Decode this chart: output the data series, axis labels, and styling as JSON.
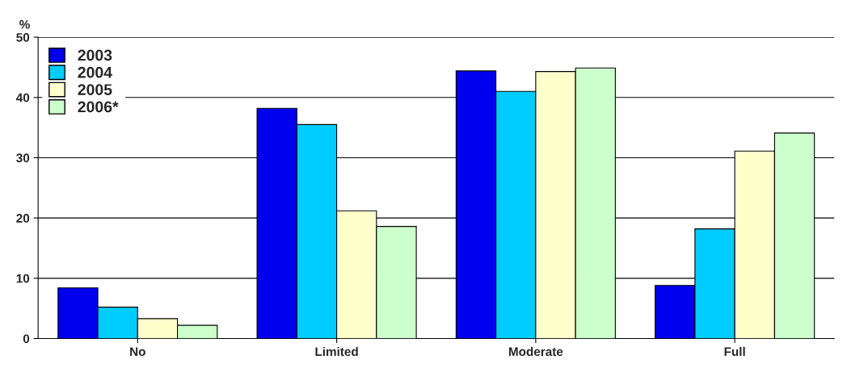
{
  "chart_data": {
    "type": "bar",
    "ylabel": "%",
    "categories": [
      "No",
      "Limited",
      "Moderate",
      "Full"
    ],
    "series": [
      {
        "name": "2003",
        "color": "#0000ee",
        "values": [
          8.4,
          38.2,
          44.4,
          8.8
        ]
      },
      {
        "name": "2004",
        "color": "#00ccff",
        "values": [
          5.2,
          35.5,
          41.0,
          18.2
        ]
      },
      {
        "name": "2005",
        "color": "#ffffcc",
        "values": [
          3.3,
          21.2,
          44.3,
          31.1
        ]
      },
      {
        "name": "2006*",
        "color": "#ccffcc",
        "values": [
          2.2,
          18.6,
          44.9,
          34.1
        ]
      }
    ],
    "ylim": [
      0,
      50
    ],
    "yticks": [
      0,
      10,
      20,
      30,
      40,
      50
    ],
    "grid": "y",
    "legend": "top left"
  }
}
